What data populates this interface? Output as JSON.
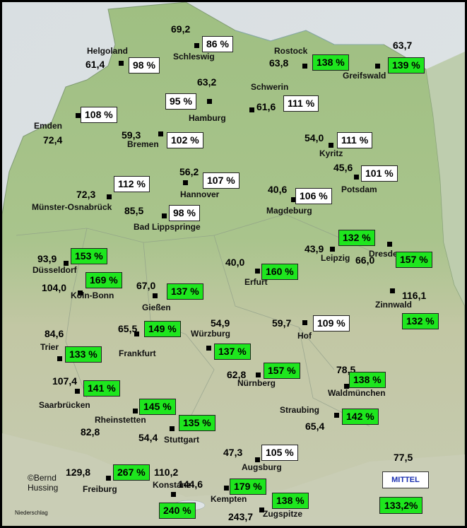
{
  "stations": [
    {
      "name": "Schleswig",
      "value": "69,2",
      "percent": "86 %",
      "color": "white"
    },
    {
      "name": "Helgoland",
      "value": "61,4",
      "percent": "98 %",
      "color": "white"
    },
    {
      "name": "Rostock",
      "value": "63,8",
      "percent": "138 %",
      "color": "green"
    },
    {
      "name": "Greifswald",
      "value": "63,7",
      "percent": "139 %",
      "color": "green"
    },
    {
      "name": "Hamburg",
      "value": "63,2",
      "percent": "95 %",
      "color": "white"
    },
    {
      "name": "Schwerin",
      "value": "61,6",
      "percent": "111 %",
      "color": "white"
    },
    {
      "name": "Emden",
      "value": "72,4",
      "percent": "108 %",
      "color": "white"
    },
    {
      "name": "Bremen",
      "value": "59,3",
      "percent": "102 %",
      "color": "white"
    },
    {
      "name": "Kyritz",
      "value": "54,0",
      "percent": "111 %",
      "color": "white"
    },
    {
      "name": "Potsdam",
      "value": "45,6",
      "percent": "101 %",
      "color": "white"
    },
    {
      "name": "Hannover",
      "value": "56,2",
      "percent": "107 %",
      "color": "white"
    },
    {
      "name": "Münster-Osnabrück",
      "value": "72,3",
      "percent": "112 %",
      "color": "white"
    },
    {
      "name": "Magdeburg",
      "value": "40,6",
      "percent": "106 %",
      "color": "white"
    },
    {
      "name": "Bad Lippspringe",
      "value": "85,5",
      "percent": "98 %",
      "color": "white"
    },
    {
      "name": "Leipzig",
      "value": "43,9",
      "percent": "132 %",
      "color": "green"
    },
    {
      "name": "Düsseldorf",
      "value": "93,9",
      "percent": "153 %",
      "color": "green"
    },
    {
      "name": "Dresden",
      "value": "66,0",
      "percent": "157 %",
      "color": "green"
    },
    {
      "name": "Erfurt",
      "value": "40,0",
      "percent": "160 %",
      "color": "green"
    },
    {
      "name": "Köln-Bonn",
      "value": "104,0",
      "percent": "169 %",
      "color": "green"
    },
    {
      "name": "Gießen",
      "value": "67,0",
      "percent": "137 %",
      "color": "green"
    },
    {
      "name": "Zinnwald",
      "value": "116,1",
      "percent": "132 %",
      "color": "green"
    },
    {
      "name": "Würzburg",
      "value": "54,9",
      "percent": "137 %",
      "color": "green"
    },
    {
      "name": "Hof",
      "value": "59,7",
      "percent": "109 %",
      "color": "white"
    },
    {
      "name": "Frankfurt",
      "value": "65,5",
      "percent": "149 %",
      "color": "green"
    },
    {
      "name": "Trier",
      "value": "84,6",
      "percent": "133 %",
      "color": "green"
    },
    {
      "name": "Nürnberg",
      "value": "62,8",
      "percent": "157 %",
      "color": "green"
    },
    {
      "name": "Waldmünchen",
      "value": "78,5",
      "percent": "138 %",
      "color": "green"
    },
    {
      "name": "Saarbrücken",
      "value": "107,4",
      "percent": "141 %",
      "color": "green"
    },
    {
      "name": "Rheinstetten",
      "value": "82,8",
      "percent": "145 %",
      "color": "green"
    },
    {
      "name": "Straubing",
      "value": "65,4",
      "percent": "142 %",
      "color": "green"
    },
    {
      "name": "Stuttgart",
      "value": "54,4",
      "percent": "135 %",
      "color": "green"
    },
    {
      "name": "Augsburg",
      "value": "47,3",
      "percent": "105 %",
      "color": "white"
    },
    {
      "name": "Freiburg",
      "value": "129,8",
      "percent": "267 %",
      "color": "green"
    },
    {
      "name": "Konstanz",
      "value": "110,2",
      "percent": "240 %",
      "color": "green"
    },
    {
      "name": "Kempten",
      "value": "144,6",
      "percent": "179 %",
      "color": "green"
    },
    {
      "name": "Zugspitze",
      "value": "243,7",
      "percent": "138 %",
      "color": "green"
    }
  ],
  "mittel": {
    "label": "MITTEL",
    "mean": "77,5",
    "percent": "133,2%"
  },
  "copyright": "©Bernd\nHussing",
  "footer_label": "Niederschlag",
  "colors": {
    "above_normal": "#1ee61e",
    "normal": "#ffffff",
    "land": "#a9c48c",
    "sea": "#dfe4e6"
  }
}
